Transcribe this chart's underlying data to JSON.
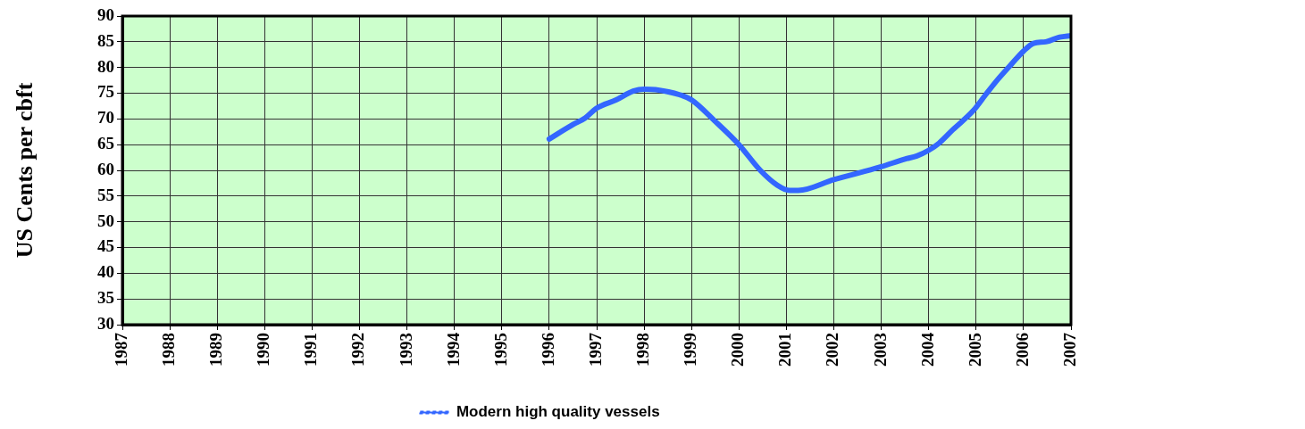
{
  "chart_data": {
    "type": "line",
    "ylabel": "US Cents per cbft",
    "x": [
      1996,
      1996.5,
      1996.76,
      1997,
      1997.41,
      1997.77,
      1998,
      1998.24,
      1998.75,
      1999,
      1999.48,
      2000,
      2000.45,
      2000.81,
      2001.07,
      2001.25,
      2002,
      2003,
      2003.5,
      2003.75,
      2004,
      2004.22,
      2004.51,
      2004.94,
      2005.2,
      2005.46,
      2005.75,
      2006,
      2006.21,
      2006.47,
      2006.76,
      2007
    ],
    "series": [
      {
        "name": "Modern high quality vessels",
        "color": "#3366ff",
        "values": [
          66.1,
          68.9,
          70.2,
          72.1,
          73.7,
          75.4,
          75.8,
          75.7,
          74.7,
          73.7,
          69.7,
          65,
          60,
          57.1,
          56.1,
          56.1,
          58.2,
          60.7,
          62.2,
          62.8,
          63.9,
          65.3,
          67.9,
          71.6,
          74.7,
          77.7,
          80.7,
          83.2,
          84.7,
          85,
          85.9,
          86.2
        ]
      }
    ],
    "xlim": [
      1987,
      2007
    ],
    "xticks": [
      1987,
      1988,
      1989,
      1990,
      1991,
      1992,
      1993,
      1994,
      1995,
      1996,
      1997,
      1998,
      1999,
      2000,
      2001,
      2002,
      2003,
      2004,
      2005,
      2006,
      2007
    ],
    "ylim": [
      30,
      90
    ],
    "yticks": [
      30,
      35,
      40,
      45,
      50,
      55,
      60,
      65,
      70,
      75,
      80,
      85,
      90
    ],
    "grid": true,
    "legend": "bottom",
    "marker": "none",
    "line_style": "solid"
  }
}
